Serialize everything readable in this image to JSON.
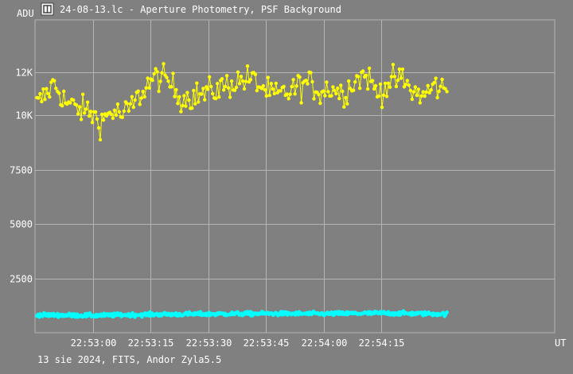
{
  "window": {
    "icon": "film-frame-icon",
    "title": "24-08-13.lc - Aperture Photometry, PSF Background"
  },
  "footer": {
    "info": "13 sie 2024, FITS, Andor Zyla5.5"
  },
  "chart_data": {
    "type": "scatter",
    "title": "",
    "ylabel": "ADU",
    "xlabel": "UT",
    "ylim": [
      0,
      14400
    ],
    "yticks": [
      {
        "value": 2500,
        "label": "2500"
      },
      {
        "value": 5000,
        "label": "5000"
      },
      {
        "value": 7500,
        "label": "7500"
      },
      {
        "value": 10000,
        "label": "10K"
      },
      {
        "value": 12000,
        "label": "12K"
      }
    ],
    "xlim_seconds_of_day": [
      82365,
      82500
    ],
    "xticks": [
      {
        "value": 82380,
        "label": "22:53:00"
      },
      {
        "value": 82395,
        "label": "22:53:15"
      },
      {
        "value": 82410,
        "label": "22:53:30"
      },
      {
        "value": 82425,
        "label": "22:53:45"
      },
      {
        "value": 82440,
        "label": "22:54:00"
      },
      {
        "value": 82455,
        "label": "22:54:15"
      }
    ],
    "grid": true,
    "series": [
      {
        "color": "#ffff00",
        "style": "line-markers",
        "anchors": [
          [
            82365.5,
            10500
          ],
          [
            82368,
            11000
          ],
          [
            82370,
            11500
          ],
          [
            82373,
            10600
          ],
          [
            82376,
            10300
          ],
          [
            82379,
            10200
          ],
          [
            82382,
            9700
          ],
          [
            82385,
            10200
          ],
          [
            82388,
            10000
          ],
          [
            82391,
            10600
          ],
          [
            82394,
            11400
          ],
          [
            82397,
            11800
          ],
          [
            82400,
            11500
          ],
          [
            82403,
            10800
          ],
          [
            82406,
            10900
          ],
          [
            82409,
            11000
          ],
          [
            82412,
            11200
          ],
          [
            82415,
            11400
          ],
          [
            82418,
            11600
          ],
          [
            82421,
            11700
          ],
          [
            82424,
            11300
          ],
          [
            82427,
            10900
          ],
          [
            82430,
            11000
          ],
          [
            82433,
            11300
          ],
          [
            82436,
            11500
          ],
          [
            82439,
            11100
          ],
          [
            82442,
            11300
          ],
          [
            82445,
            11000
          ],
          [
            82448,
            11600
          ],
          [
            82451,
            11900
          ],
          [
            82454,
            11000
          ],
          [
            82457,
            11500
          ],
          [
            82460,
            11700
          ],
          [
            82463,
            11100
          ],
          [
            82466,
            10900
          ],
          [
            82469,
            11400
          ],
          [
            82472,
            11100
          ]
        ],
        "noise": 650,
        "points": 260
      },
      {
        "color": "#00ffff",
        "style": "markers",
        "anchors": [
          [
            82365.5,
            820
          ],
          [
            82380,
            790
          ],
          [
            82395,
            840
          ],
          [
            82410,
            860
          ],
          [
            82425,
            880
          ],
          [
            82440,
            870
          ],
          [
            82455,
            900
          ],
          [
            82472,
            860
          ]
        ],
        "noise": 90,
        "points": 520
      }
    ]
  }
}
